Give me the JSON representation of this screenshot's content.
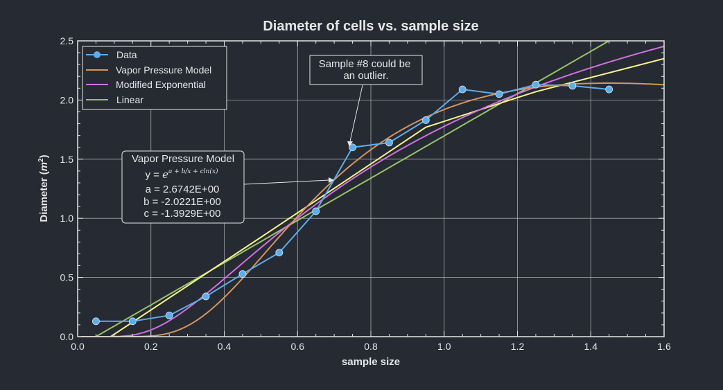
{
  "chart_data": {
    "type": "line",
    "title": "Diameter of cells vs. sample size",
    "xlabel": "sample size",
    "ylabel": "Diameter (m²)",
    "xlim": [
      0,
      1.6
    ],
    "ylim": [
      0,
      2.5
    ],
    "xticks": [
      "0.0",
      "0.2",
      "0.4",
      "0.6",
      "0.8",
      "1.0",
      "1.2",
      "1.4",
      "1.6"
    ],
    "yticks": [
      "0.0",
      "0.5",
      "1.0",
      "1.5",
      "2.0",
      "2.5"
    ],
    "grid": true,
    "legend_position": "top-left",
    "colors": {
      "data": "#5dade8",
      "vapor": "#d4965e",
      "modexp": "#d070e0",
      "linear": "#98c46a",
      "extra": "#f5f58a",
      "grid": "#c8c8c8",
      "bg": "#262a33"
    },
    "series": [
      {
        "name": "Data",
        "key": "data",
        "x": [
          0.05,
          0.15,
          0.25,
          0.35,
          0.45,
          0.55,
          0.65,
          0.75,
          0.85,
          0.95,
          1.05,
          1.15,
          1.25,
          1.35,
          1.45
        ],
        "y": [
          0.13,
          0.13,
          0.18,
          0.34,
          0.53,
          0.71,
          1.06,
          1.6,
          1.64,
          1.83,
          2.09,
          2.05,
          2.13,
          2.12,
          2.09
        ]
      },
      {
        "name": "Vapor Pressure Model",
        "key": "vapor",
        "model": "exp(a+b/x+c*ln(x))",
        "params": {
          "a": 2.6742,
          "b": -2.0221,
          "c": -1.3929
        }
      },
      {
        "name": "Modified Exponential",
        "key": "modexp",
        "model": "a*exp(b/x)",
        "params": {
          "a": 4.2,
          "b": -0.86
        }
      },
      {
        "name": "Linear",
        "key": "linear",
        "model": "a+b*x",
        "params": {
          "a": -0.089,
          "b": 1.786
        }
      },
      {
        "name": "",
        "key": "extra",
        "x": [
          0.09,
          0.5,
          0.95,
          1.25,
          1.6
        ],
        "y": [
          0,
          0.84,
          1.77,
          2.07,
          2.35
        ]
      }
    ],
    "annotations": {
      "outlier": "Sample #8 could be an outlier.",
      "outlier_line1": "Sample #8 could be",
      "outlier_line2": "an outlier.",
      "model_box": {
        "title": "Vapor Pressure Model",
        "equation_prefix": "y = ",
        "equation": "e^(a + b/x + cln(x))",
        "a": "a = 2.6742E+00",
        "b": "b = -2.0221E+00",
        "c": "c = -1.3929E+00"
      }
    }
  }
}
